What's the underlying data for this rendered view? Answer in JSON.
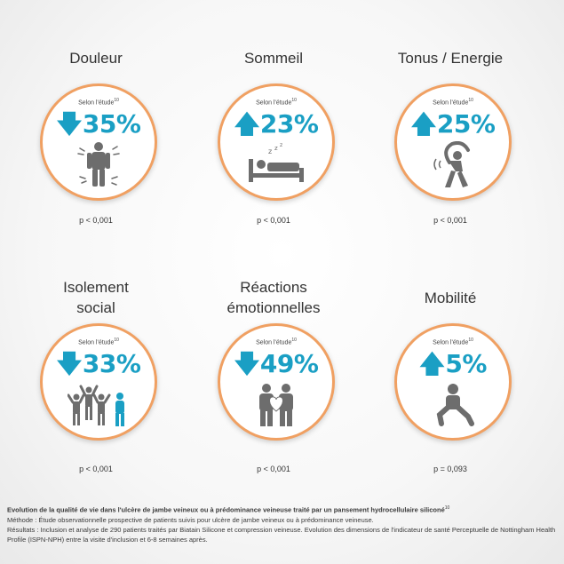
{
  "study_label": "Selon l'étude",
  "study_ref": "10",
  "items": [
    {
      "title": "Douleur",
      "direction": "down",
      "value": "35%",
      "p": "p < 0,001",
      "icon": "pain-person-icon"
    },
    {
      "title": "Sommeil",
      "direction": "up",
      "value": "23%",
      "p": "p < 0,001",
      "icon": "sleeping-bed-icon"
    },
    {
      "title": "Tonus / Energie",
      "direction": "up",
      "value": "25%",
      "p": "p < 0,001",
      "icon": "stretching-person-icon"
    },
    {
      "title": "Isolement\nsocial",
      "direction": "down",
      "value": "33%",
      "p": "p < 0,001",
      "icon": "isolated-group-icon"
    },
    {
      "title": "Réactions\némotionnelles",
      "direction": "down",
      "value": "49%",
      "p": "p < 0,001",
      "icon": "couple-heart-icon"
    },
    {
      "title": "Mobilité",
      "direction": "up",
      "value": "5%",
      "p": "p = 0,093",
      "icon": "squatting-person-icon"
    }
  ],
  "footnote": {
    "title": "Evolution de la qualité de vie dans l'ulcère de jambe veineux ou à prédominance veineuse traité par un pansement hydrocellulaire siliconé",
    "title_ref": "10",
    "methode": "Méthode :  Étude observationnelle prospective de patients suivis pour ulcère de jambe veineux ou à prédominance veineuse.",
    "resultats": "Résultats : Inclusion et analyse de 290 patients traités par Biatain Silicone et compression veineuse. Evolution des dimensions de l'indicateur de santé Perceptuelle de Nottingham Health Profile (ISPN-NPH) entre la visite d'inclusion et 6-8 semaines après."
  },
  "colors": {
    "accent": "#1a9fc4",
    "ring": "#f0a062",
    "icon": "#6d6d6d"
  }
}
